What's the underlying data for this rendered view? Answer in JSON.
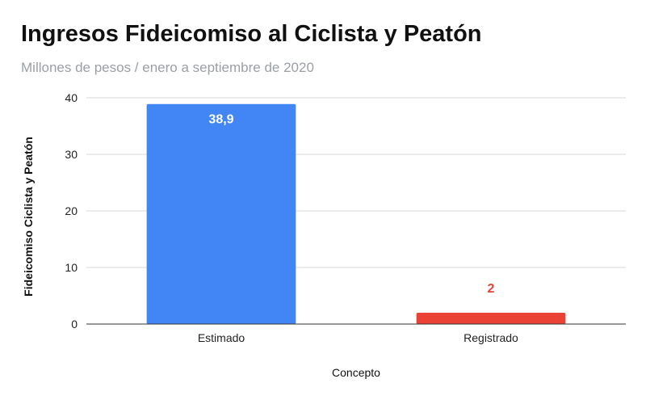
{
  "chart_data": {
    "type": "bar",
    "title": "Ingresos Fideicomiso al Ciclista y Peatón",
    "subtitle": "Millones de pesos / enero a septiembre de 2020",
    "xlabel": "Concepto",
    "ylabel": "Fideicomiso Ciclista y Peatón",
    "categories": [
      "Estimado",
      "Registrado"
    ],
    "values": [
      38.9,
      2
    ],
    "data_labels": [
      "38,9",
      "2"
    ],
    "colors": [
      "#4285f4",
      "#ea4335"
    ],
    "data_label_colors": [
      "#ffffff",
      "#ea4335"
    ],
    "ylim": [
      0,
      40
    ],
    "yticks": [
      0,
      10,
      20,
      30,
      40
    ],
    "grid": true,
    "legend": "none"
  }
}
